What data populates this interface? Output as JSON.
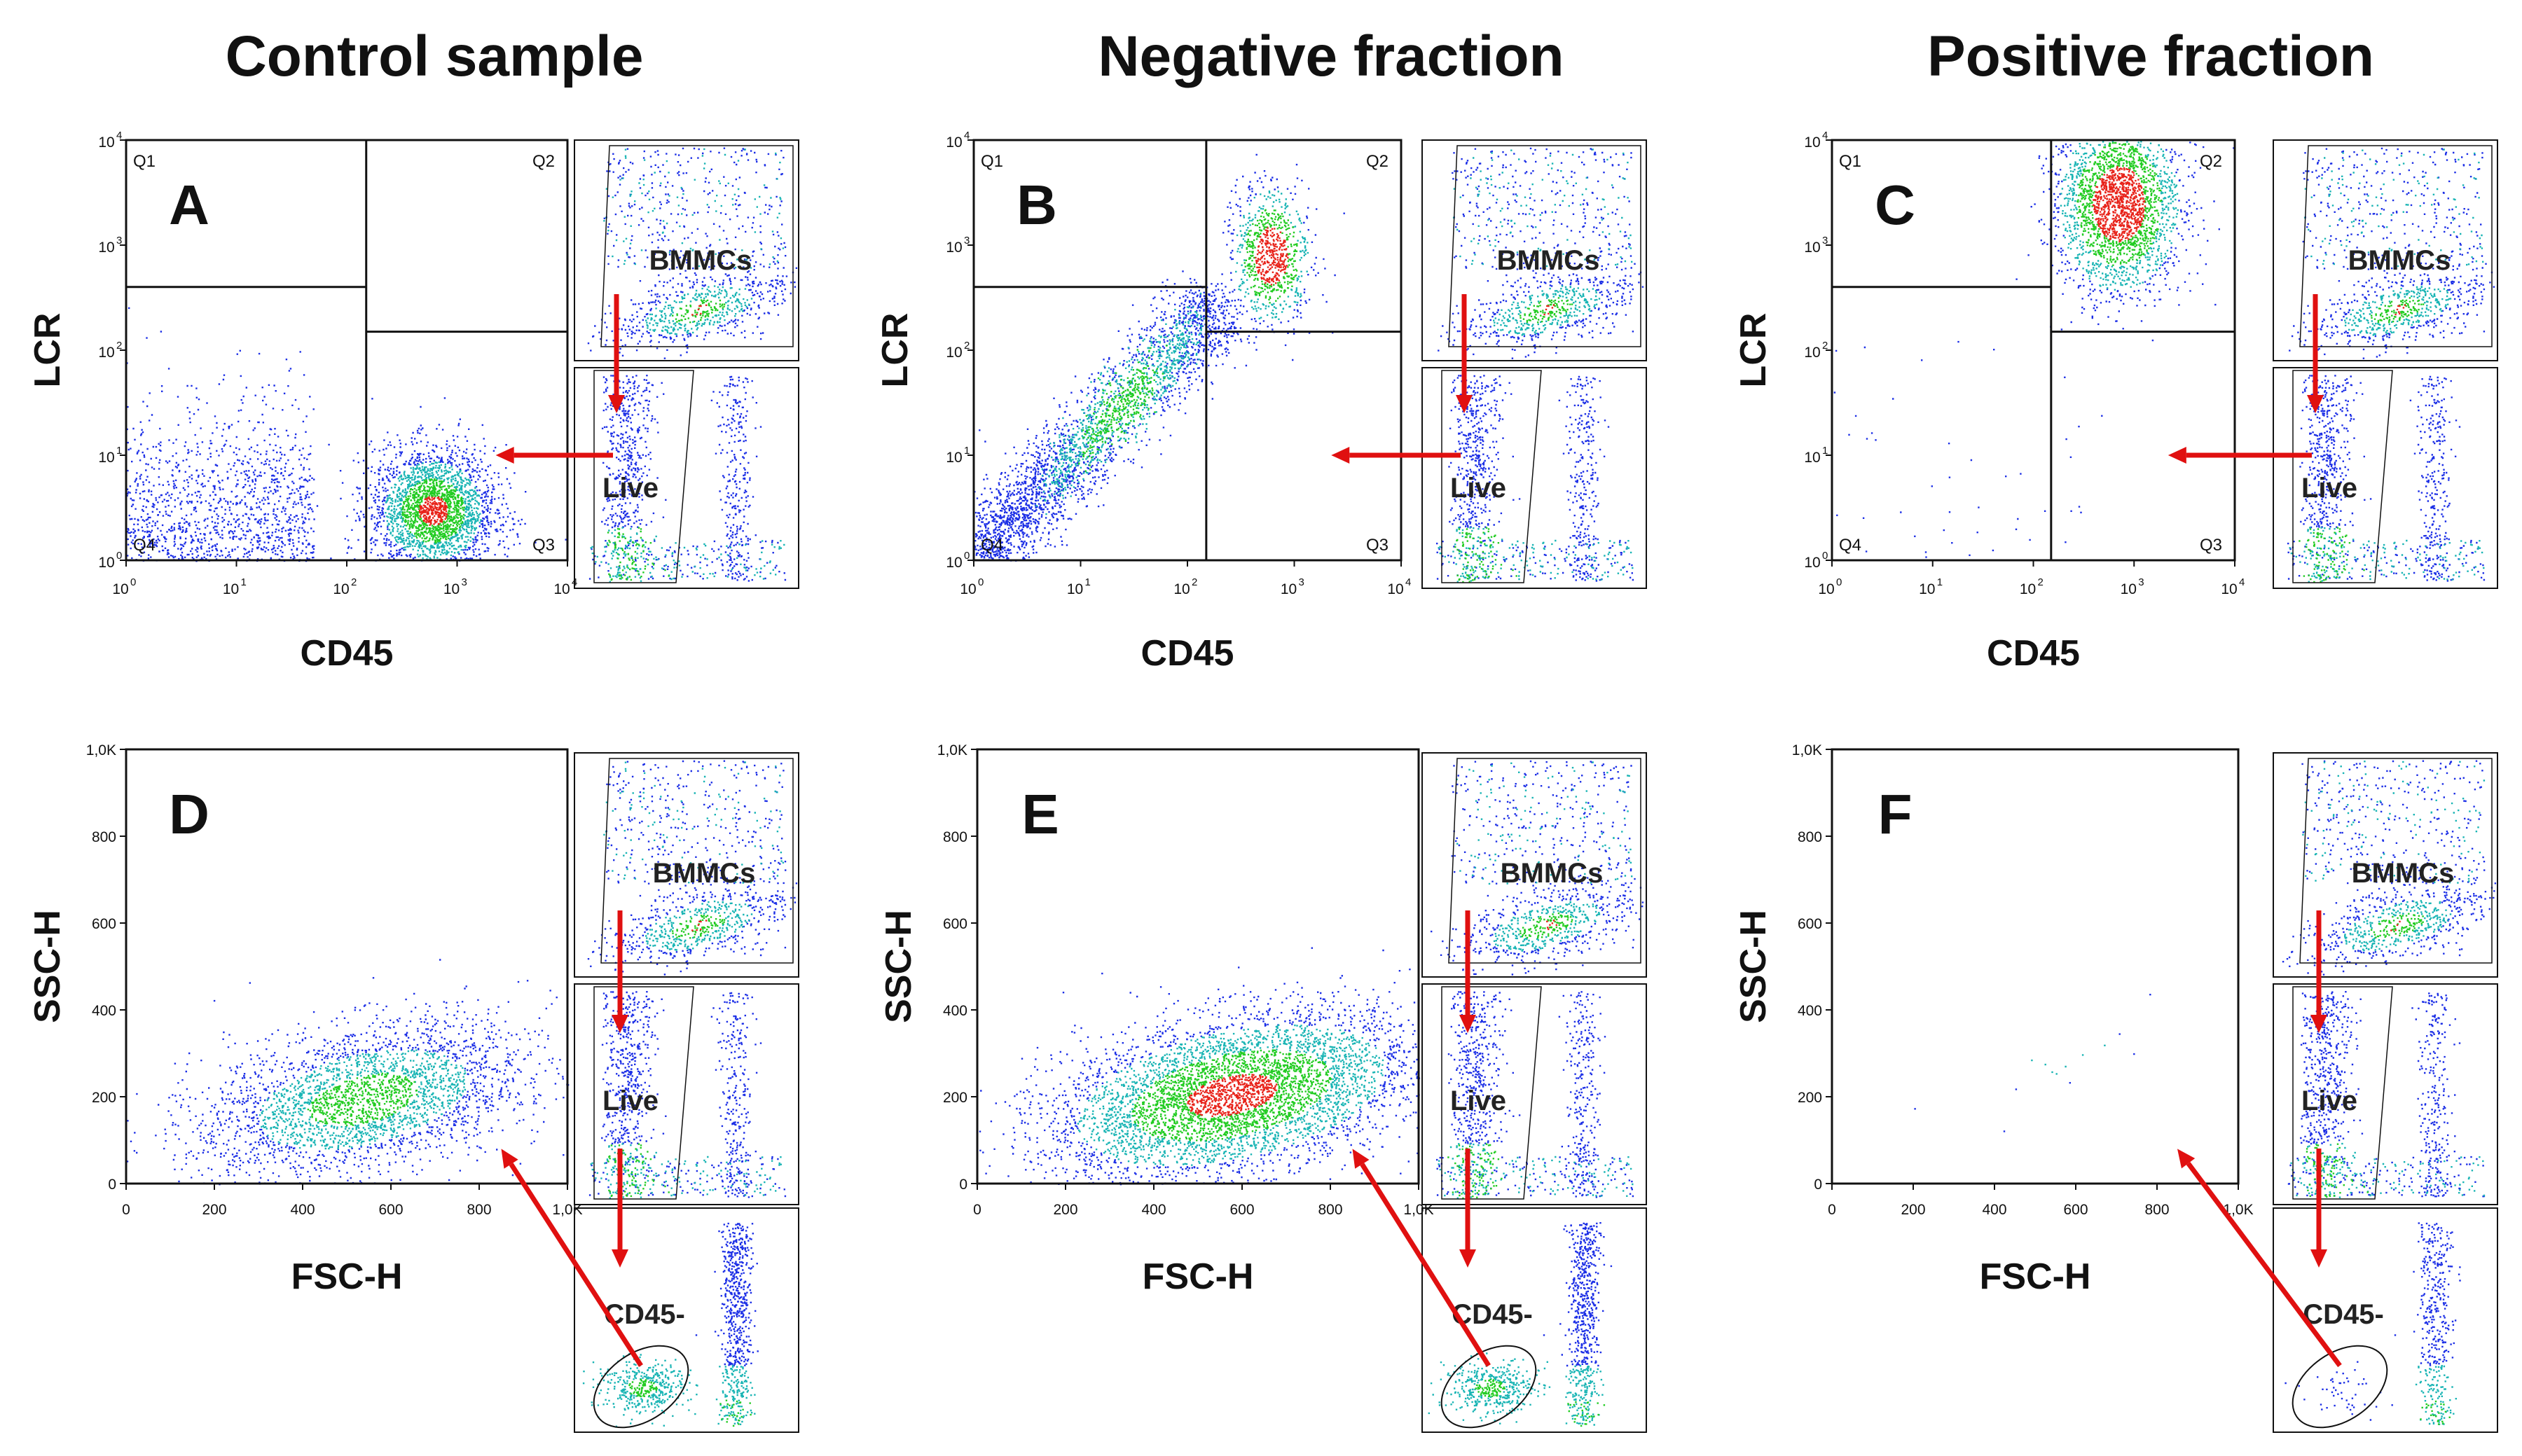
{
  "figure": {
    "columns": [
      {
        "key": "control",
        "title": "Control sample"
      },
      {
        "key": "negative",
        "title": "Negative fraction"
      },
      {
        "key": "positive",
        "title": "Positive fraction"
      }
    ],
    "quadrant_labels": [
      "Q1",
      "Q2",
      "Q3",
      "Q4"
    ],
    "gate_labels": {
      "bmmcs": "BMMCs",
      "live": "Live",
      "cd45neg": "CD45-"
    },
    "colors": {
      "arrow": "#e01010",
      "dot_low": "#1b2ee6",
      "dot_mid": "#18b4b4",
      "dot_high": "#22cc22",
      "dot_peak": "#e8231a",
      "frame": "#111111"
    }
  },
  "chart_data": [
    {
      "type": "scatter",
      "panel": "A",
      "column": "control",
      "xlabel": "CD45",
      "ylabel": "LCR",
      "x_scale": "log",
      "y_scale": "log",
      "xlim": [
        1,
        10000
      ],
      "ylim": [
        1,
        10000
      ],
      "x_ticks": [
        "10^0",
        "10^1",
        "10^2",
        "10^3",
        "10^4"
      ],
      "y_ticks": [
        "10^0",
        "10^1",
        "10^2",
        "10^3",
        "10^4"
      ],
      "quadrant_gate": {
        "x": 150,
        "y_left": 400,
        "y_right": 150
      },
      "clusters": [
        {
          "x": [
            1,
            50
          ],
          "y": [
            1,
            30
          ],
          "n": 1200,
          "level": 0
        },
        {
          "x": [
            600,
            600
          ],
          "y": [
            3,
            3
          ],
          "sx": 0.28,
          "sy": 0.3,
          "n": 2600,
          "level": 2
        }
      ],
      "inset_gates": [
        "BMMCs",
        "Live"
      ]
    },
    {
      "type": "scatter",
      "panel": "B",
      "column": "negative",
      "xlabel": "CD45",
      "ylabel": "LCR",
      "x_scale": "log",
      "y_scale": "log",
      "xlim": [
        1,
        10000
      ],
      "ylim": [
        1,
        10000
      ],
      "x_ticks": [
        "10^0",
        "10^1",
        "10^2",
        "10^3",
        "10^4"
      ],
      "y_ticks": [
        "10^0",
        "10^1",
        "10^2",
        "10^3",
        "10^4"
      ],
      "quadrant_gate": {
        "x": 150,
        "y_left": 400,
        "y_right": 150
      },
      "clusters": [
        {
          "x": [
            1,
            200
          ],
          "y": [
            1,
            300
          ],
          "n": 3200,
          "level": 1,
          "shape": "diagonal"
        },
        {
          "x": [
            600,
            600
          ],
          "y": [
            800,
            800
          ],
          "sx": 0.18,
          "sy": 0.32,
          "n": 900,
          "level": 3
        }
      ],
      "inset_gates": [
        "BMMCs",
        "Live"
      ]
    },
    {
      "type": "scatter",
      "panel": "C",
      "column": "positive",
      "xlabel": "CD45",
      "ylabel": "LCR",
      "x_scale": "log",
      "y_scale": "log",
      "xlim": [
        1,
        10000
      ],
      "ylim": [
        1,
        10000
      ],
      "x_ticks": [
        "10^0",
        "10^1",
        "10^2",
        "10^3",
        "10^4"
      ],
      "y_ticks": [
        "10^0",
        "10^1",
        "10^2",
        "10^3",
        "10^4"
      ],
      "quadrant_gate": {
        "x": 150,
        "y_left": 400,
        "y_right": 150
      },
      "clusters": [
        {
          "x": [
            700,
            700
          ],
          "y": [
            2500,
            2500
          ],
          "sx": 0.3,
          "sy": 0.42,
          "n": 2600,
          "level": 3
        },
        {
          "x": [
            1,
            300
          ],
          "y": [
            1,
            300
          ],
          "n": 45,
          "level": 0
        }
      ],
      "inset_gates": [
        "BMMCs",
        "Live"
      ]
    },
    {
      "type": "scatter",
      "panel": "D",
      "column": "control",
      "xlabel": "FSC-H",
      "ylabel": "SSC-H",
      "x_scale": "linear",
      "y_scale": "linear",
      "xlim": [
        0,
        1000
      ],
      "ylim": [
        0,
        1000
      ],
      "x_ticks": [
        "0",
        "200",
        "400",
        "600",
        "800",
        "1,0K"
      ],
      "y_ticks": [
        "0",
        "200",
        "400",
        "600",
        "800",
        "1,0K"
      ],
      "clusters": [
        {
          "x": [
            150,
            920
          ],
          "y": [
            10,
            380
          ],
          "n": 3000,
          "level": 1
        }
      ],
      "inset_gates": [
        "BMMCs",
        "Live",
        "CD45-"
      ]
    },
    {
      "type": "scatter",
      "panel": "E",
      "column": "negative",
      "xlabel": "FSC-H",
      "ylabel": "SSC-H",
      "x_scale": "linear",
      "y_scale": "linear",
      "xlim": [
        0,
        1000
      ],
      "ylim": [
        0,
        1000
      ],
      "x_ticks": [
        "0",
        "200",
        "400",
        "600",
        "800",
        "1,0K"
      ],
      "y_ticks": [
        "0",
        "200",
        "400",
        "600",
        "800",
        "1,0K"
      ],
      "clusters": [
        {
          "x": [
            150,
            1000
          ],
          "y": [
            10,
            400
          ],
          "n": 6000,
          "level": 2
        }
      ],
      "inset_gates": [
        "BMMCs",
        "Live",
        "CD45-"
      ]
    },
    {
      "type": "scatter",
      "panel": "F",
      "column": "positive",
      "xlabel": "FSC-H",
      "ylabel": "SSC-H",
      "x_scale": "linear",
      "y_scale": "linear",
      "xlim": [
        0,
        1000
      ],
      "ylim": [
        0,
        1000
      ],
      "x_ticks": [
        "0",
        "200",
        "400",
        "600",
        "800",
        "1,0K"
      ],
      "y_ticks": [
        "0",
        "200",
        "400",
        "600",
        "800",
        "1,0K"
      ],
      "clusters": [
        {
          "x": [
            150,
            950
          ],
          "y": [
            150,
            400
          ],
          "n": 14,
          "level": 0
        }
      ],
      "inset_gates": [
        "BMMCs",
        "Live",
        "CD45-"
      ]
    }
  ]
}
